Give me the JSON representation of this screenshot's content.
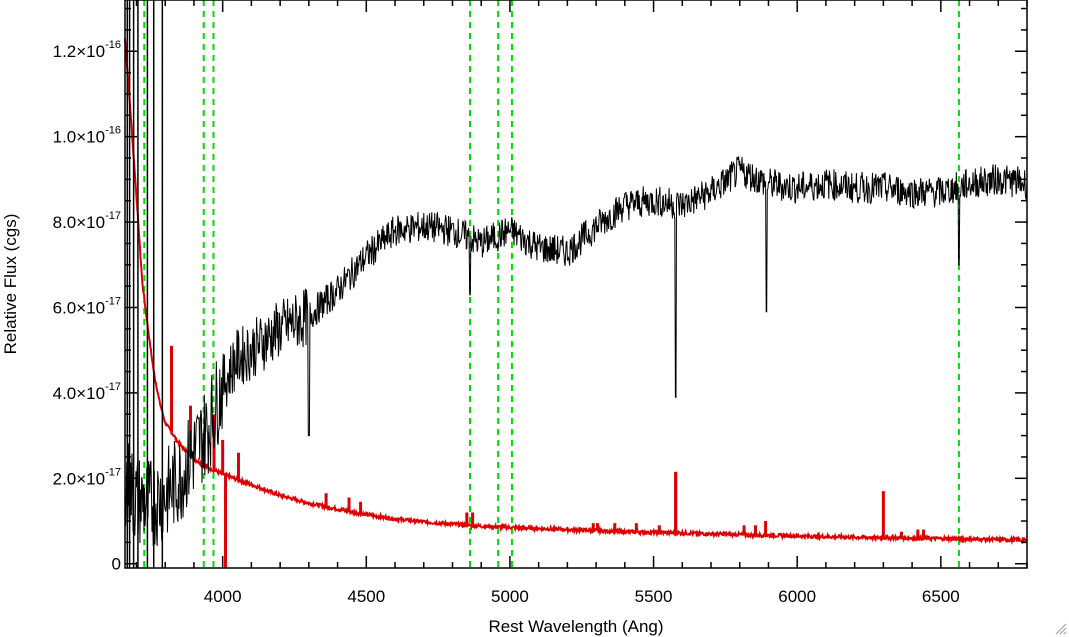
{
  "chart_data": {
    "type": "line",
    "title": "",
    "xlabel": "Rest Wavelength (Ang)",
    "ylabel": "Relative Flux (cgs)",
    "xlim": [
      3660,
      6800
    ],
    "ylim": [
      -1e-18,
      1.32e-16
    ],
    "x_ticks": [
      {
        "value": 4000,
        "label": "4000"
      },
      {
        "value": 4500,
        "label": "4500"
      },
      {
        "value": 5000,
        "label": "5000"
      },
      {
        "value": 5500,
        "label": "5500"
      },
      {
        "value": 6000,
        "label": "6000"
      },
      {
        "value": 6500,
        "label": "6500"
      }
    ],
    "y_ticks": [
      {
        "value": 0,
        "mantissa": "0",
        "exp": ""
      },
      {
        "value": 2e-17,
        "mantissa": "2.0×10",
        "exp": "-17"
      },
      {
        "value": 4e-17,
        "mantissa": "4.0×10",
        "exp": "-17"
      },
      {
        "value": 6e-17,
        "mantissa": "6.0×10",
        "exp": "-17"
      },
      {
        "value": 8e-17,
        "mantissa": "8.0×10",
        "exp": "-17"
      },
      {
        "value": 1e-16,
        "mantissa": "1.0×10",
        "exp": "-16"
      },
      {
        "value": 1.2e-16,
        "mantissa": "1.2×10",
        "exp": "-16"
      }
    ],
    "grid": false,
    "reference_lines": {
      "color": "#00dd00",
      "style": "dashed",
      "x": [
        3727,
        3934,
        3968,
        4861,
        4959,
        5007,
        6563
      ]
    },
    "series": [
      {
        "color": "#000000",
        "style": "noisy",
        "x": [
          3660,
          3700,
          3750,
          3800,
          3850,
          3900,
          3950,
          4000,
          4050,
          4100,
          4200,
          4300,
          4400,
          4500,
          4600,
          4700,
          4800,
          4900,
          5000,
          5100,
          5200,
          5300,
          5400,
          5500,
          5600,
          5700,
          5800,
          5900,
          6000,
          6100,
          6200,
          6300,
          6400,
          6500,
          6600,
          6700,
          6800
        ],
        "y": [
          2e-17,
          1.5e-17,
          1.4e-17,
          1.6e-17,
          2e-17,
          2.6e-17,
          3.2e-17,
          4.2e-17,
          4.8e-17,
          5e-17,
          5.5e-17,
          5.8e-17,
          6.4e-17,
          7.2e-17,
          7.8e-17,
          7.9e-17,
          7.8e-17,
          7.5e-17,
          7.8e-17,
          7.4e-17,
          7.3e-17,
          7.9e-17,
          8.4e-17,
          8.5e-17,
          8.4e-17,
          8.7e-17,
          9.2e-17,
          8.9e-17,
          8.8e-17,
          8.9e-17,
          8.8e-17,
          8.8e-17,
          8.7e-17,
          8.7e-17,
          8.9e-17,
          9e-17,
          8.9e-17
        ],
        "absorption": [
          {
            "x": 5577,
            "y": 3.9e-17
          },
          {
            "x": 5893,
            "y": 5.9e-17
          },
          {
            "x": 4861,
            "y": 6.3e-17
          },
          {
            "x": 6563,
            "y": 7e-17
          },
          {
            "x": 4300,
            "y": 3e-17
          }
        ]
      },
      {
        "color": "#dd0000",
        "style": "smooth",
        "x": [
          3660,
          3680,
          3700,
          3720,
          3740,
          3760,
          3780,
          3800,
          3850,
          3900,
          3950,
          4000,
          4100,
          4200,
          4300,
          4400,
          4500,
          4600,
          4700,
          4800,
          4900,
          5000,
          5200,
          5400,
          5600,
          5800,
          6000,
          6200,
          6400,
          6600,
          6800
        ],
        "y": [
          1.23e-16,
          1.05e-16,
          8.6e-17,
          6.6e-17,
          5.5e-17,
          4.5e-17,
          3.8e-17,
          3.3e-17,
          2.8e-17,
          2.45e-17,
          2.25e-17,
          2.1e-17,
          1.85e-17,
          1.6e-17,
          1.42e-17,
          1.28e-17,
          1.15e-17,
          1.05e-17,
          9.8e-18,
          9.3e-18,
          8.8e-18,
          8.5e-18,
          8e-18,
          7.5e-18,
          7.2e-18,
          6.8e-18,
          6.5e-18,
          6.2e-18,
          6e-18,
          5.8e-18,
          5.5e-18
        ],
        "spikes": [
          {
            "x": 3822,
            "y": 5.1e-17
          },
          {
            "x": 3888,
            "y": 3.7e-17
          },
          {
            "x": 3970,
            "y": 3.5e-17
          },
          {
            "x": 4000,
            "y": 2.9e-17
          },
          {
            "x": 4055,
            "y": 2.6e-17
          },
          {
            "x": 4360,
            "y": 1.65e-17
          },
          {
            "x": 4440,
            "y": 1.55e-17
          },
          {
            "x": 4480,
            "y": 1.45e-17
          },
          {
            "x": 4850,
            "y": 1.2e-17
          },
          {
            "x": 4870,
            "y": 1.2e-17
          },
          {
            "x": 5290,
            "y": 9.5e-18
          },
          {
            "x": 5305,
            "y": 9.5e-18
          },
          {
            "x": 5365,
            "y": 9.5e-18
          },
          {
            "x": 5440,
            "y": 9.5e-18
          },
          {
            "x": 5520,
            "y": 9e-18
          },
          {
            "x": 5577,
            "y": 2.15e-17
          },
          {
            "x": 5577,
            "y": 2.15e-17
          },
          {
            "x": 5815,
            "y": 9e-18
          },
          {
            "x": 5855,
            "y": 9e-18
          },
          {
            "x": 5890,
            "y": 1e-17
          },
          {
            "x": 6300,
            "y": 1.7e-17
          },
          {
            "x": 6363,
            "y": 7.5e-18
          },
          {
            "x": 6420,
            "y": 8e-18
          },
          {
            "x": 6440,
            "y": 8e-18
          }
        ],
        "dips": [
          {
            "x": 4010,
            "y": -1e-18
          }
        ]
      }
    ]
  }
}
